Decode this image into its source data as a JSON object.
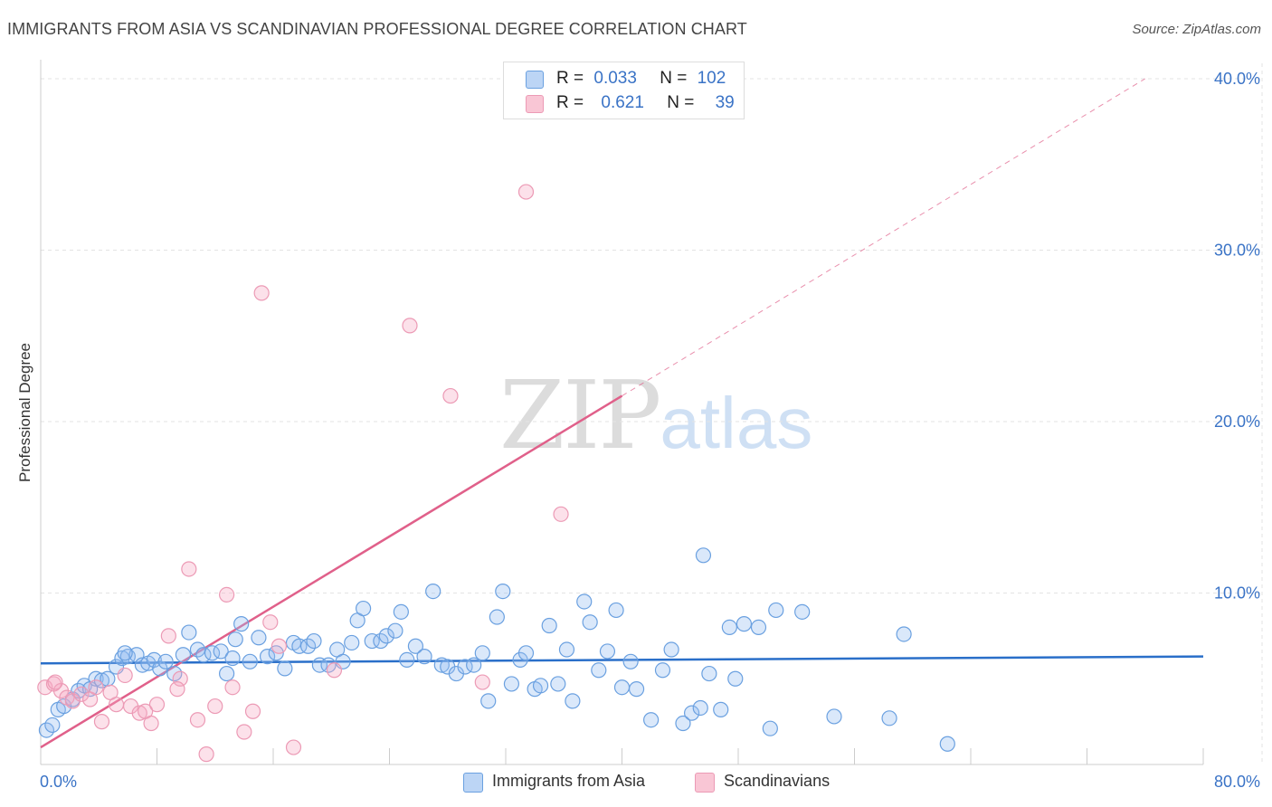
{
  "header": {
    "title": "IMMIGRANTS FROM ASIA VS SCANDINAVIAN PROFESSIONAL DEGREE CORRELATION CHART",
    "source": "Source: ZipAtlas.com"
  },
  "watermark": {
    "zip": "ZIP",
    "atlas": "atlas"
  },
  "legend_top": {
    "rows": [
      {
        "r_label": "R =",
        "r_value": "0.033",
        "n_label": "N =",
        "n_value": "102",
        "color": "#a9c8f0"
      },
      {
        "r_label": "R =",
        "r_value": "0.621",
        "n_label": "N =",
        "n_value": "39",
        "color": "#f7b6c8"
      }
    ]
  },
  "legend_bottom": {
    "items": [
      {
        "label": "Immigrants from Asia",
        "color": "#a9c8f0"
      },
      {
        "label": "Scandinavians",
        "color": "#f7b6c8"
      }
    ]
  },
  "colors": {
    "blue_fill": "rgba(150,190,240,0.35)",
    "blue_stroke": "#6aa0e0",
    "blue_line": "#2a6fc9",
    "pink_fill": "rgba(245,170,195,0.35)",
    "pink_stroke": "#ec9ab5",
    "pink_line": "#e0608a",
    "grid": "#e3e3e3",
    "tick_label": "#3a73c6"
  },
  "chart_data": {
    "type": "scatter",
    "title": "IMMIGRANTS FROM ASIA VS SCANDINAVIAN PROFESSIONAL DEGREE CORRELATION CHART",
    "xlabel": "",
    "ylabel": "Professional Degree",
    "xlim": [
      0,
      80
    ],
    "ylim": [
      0,
      42
    ],
    "x_tick_labels": [
      "0.0%",
      "80.0%"
    ],
    "y_ticks": [
      10,
      20,
      30,
      40
    ],
    "y_tick_labels": [
      "10.0%",
      "20.0%",
      "30.0%",
      "40.0%"
    ],
    "grid": true,
    "legend_position": "top-center",
    "series": [
      {
        "name": "Immigrants from Asia",
        "r": 0.033,
        "n": 102,
        "trend": {
          "x": [
            0,
            80
          ],
          "y": [
            5.9,
            6.3
          ]
        },
        "points": [
          [
            0.4,
            2.0
          ],
          [
            0.8,
            2.3
          ],
          [
            1.2,
            3.2
          ],
          [
            1.6,
            3.4
          ],
          [
            2.2,
            3.8
          ],
          [
            2.6,
            4.3
          ],
          [
            3.0,
            4.6
          ],
          [
            3.4,
            4.4
          ],
          [
            3.8,
            5.0
          ],
          [
            4.2,
            4.9
          ],
          [
            4.6,
            5.0
          ],
          [
            5.2,
            5.7
          ],
          [
            5.6,
            6.2
          ],
          [
            6.0,
            6.3
          ],
          [
            6.6,
            6.4
          ],
          [
            7.0,
            5.8
          ],
          [
            7.4,
            5.9
          ],
          [
            7.8,
            6.1
          ],
          [
            8.2,
            5.6
          ],
          [
            8.6,
            6.0
          ],
          [
            9.2,
            5.3
          ],
          [
            9.8,
            6.4
          ],
          [
            10.2,
            7.7
          ],
          [
            10.8,
            6.7
          ],
          [
            11.2,
            6.4
          ],
          [
            11.8,
            6.5
          ],
          [
            12.4,
            6.6
          ],
          [
            12.8,
            5.3
          ],
          [
            13.4,
            7.3
          ],
          [
            13.8,
            8.2
          ],
          [
            14.4,
            6.0
          ],
          [
            15.0,
            7.4
          ],
          [
            15.6,
            6.3
          ],
          [
            16.2,
            6.5
          ],
          [
            16.8,
            5.6
          ],
          [
            17.4,
            7.1
          ],
          [
            17.8,
            6.9
          ],
          [
            18.4,
            6.9
          ],
          [
            18.8,
            7.2
          ],
          [
            19.2,
            5.8
          ],
          [
            19.8,
            5.8
          ],
          [
            20.4,
            6.7
          ],
          [
            20.8,
            6.0
          ],
          [
            21.4,
            7.1
          ],
          [
            21.8,
            8.4
          ],
          [
            22.2,
            9.1
          ],
          [
            22.8,
            7.2
          ],
          [
            23.4,
            7.2
          ],
          [
            23.8,
            7.5
          ],
          [
            24.4,
            7.8
          ],
          [
            24.8,
            8.9
          ],
          [
            25.2,
            6.1
          ],
          [
            25.8,
            6.9
          ],
          [
            26.4,
            6.3
          ],
          [
            27.0,
            10.1
          ],
          [
            27.6,
            5.8
          ],
          [
            28.0,
            5.7
          ],
          [
            28.6,
            5.3
          ],
          [
            29.2,
            5.7
          ],
          [
            29.8,
            5.8
          ],
          [
            30.4,
            6.5
          ],
          [
            30.8,
            3.7
          ],
          [
            31.4,
            8.6
          ],
          [
            31.8,
            10.1
          ],
          [
            32.4,
            4.7
          ],
          [
            33.0,
            6.1
          ],
          [
            33.4,
            6.5
          ],
          [
            34.0,
            4.4
          ],
          [
            34.4,
            4.6
          ],
          [
            35.0,
            8.1
          ],
          [
            35.6,
            4.7
          ],
          [
            36.2,
            6.7
          ],
          [
            36.6,
            3.7
          ],
          [
            37.4,
            9.5
          ],
          [
            37.8,
            8.3
          ],
          [
            38.4,
            5.5
          ],
          [
            39.0,
            6.6
          ],
          [
            39.6,
            9.0
          ],
          [
            40.0,
            4.5
          ],
          [
            40.6,
            6.0
          ],
          [
            41.0,
            4.4
          ],
          [
            42.0,
            2.6
          ],
          [
            42.8,
            5.5
          ],
          [
            43.4,
            6.7
          ],
          [
            44.2,
            2.4
          ],
          [
            44.8,
            3.0
          ],
          [
            45.4,
            3.3
          ],
          [
            46.0,
            5.3
          ],
          [
            46.8,
            3.2
          ],
          [
            47.4,
            8.0
          ],
          [
            47.8,
            5.0
          ],
          [
            48.4,
            8.2
          ],
          [
            49.4,
            8.0
          ],
          [
            50.2,
            2.1
          ],
          [
            50.6,
            9.0
          ],
          [
            52.4,
            8.9
          ],
          [
            54.6,
            2.8
          ],
          [
            58.4,
            2.7
          ],
          [
            59.4,
            7.6
          ],
          [
            62.4,
            1.2
          ],
          [
            45.6,
            12.2
          ],
          [
            5.8,
            6.5
          ],
          [
            13.2,
            6.2
          ]
        ]
      },
      {
        "name": "Scandinavians",
        "r": 0.621,
        "n": 39,
        "trend": {
          "x": [
            0,
            40
          ],
          "y": [
            1.0,
            21.5
          ],
          "dashed_to": [
            76,
            40.0
          ]
        },
        "points": [
          [
            0.3,
            4.5
          ],
          [
            0.9,
            4.7
          ],
          [
            1.4,
            4.3
          ],
          [
            1.8,
            3.9
          ],
          [
            2.2,
            3.7
          ],
          [
            2.8,
            4.1
          ],
          [
            3.4,
            3.8
          ],
          [
            3.8,
            4.5
          ],
          [
            4.2,
            2.5
          ],
          [
            4.8,
            4.2
          ],
          [
            5.2,
            3.5
          ],
          [
            5.8,
            5.2
          ],
          [
            6.2,
            3.4
          ],
          [
            6.8,
            3.0
          ],
          [
            7.2,
            3.1
          ],
          [
            7.6,
            2.4
          ],
          [
            8.0,
            3.5
          ],
          [
            8.8,
            7.5
          ],
          [
            9.6,
            5.0
          ],
          [
            10.2,
            11.4
          ],
          [
            10.8,
            2.6
          ],
          [
            11.4,
            0.6
          ],
          [
            12.0,
            3.4
          ],
          [
            12.8,
            9.9
          ],
          [
            13.2,
            4.5
          ],
          [
            14.0,
            1.9
          ],
          [
            14.6,
            3.1
          ],
          [
            15.2,
            27.5
          ],
          [
            15.8,
            8.3
          ],
          [
            16.4,
            6.9
          ],
          [
            17.4,
            1.0
          ],
          [
            20.2,
            5.5
          ],
          [
            25.4,
            25.6
          ],
          [
            28.2,
            21.5
          ],
          [
            30.4,
            4.8
          ],
          [
            33.4,
            33.4
          ],
          [
            35.8,
            14.6
          ],
          [
            9.4,
            4.4
          ],
          [
            1.0,
            4.8
          ]
        ]
      }
    ]
  }
}
